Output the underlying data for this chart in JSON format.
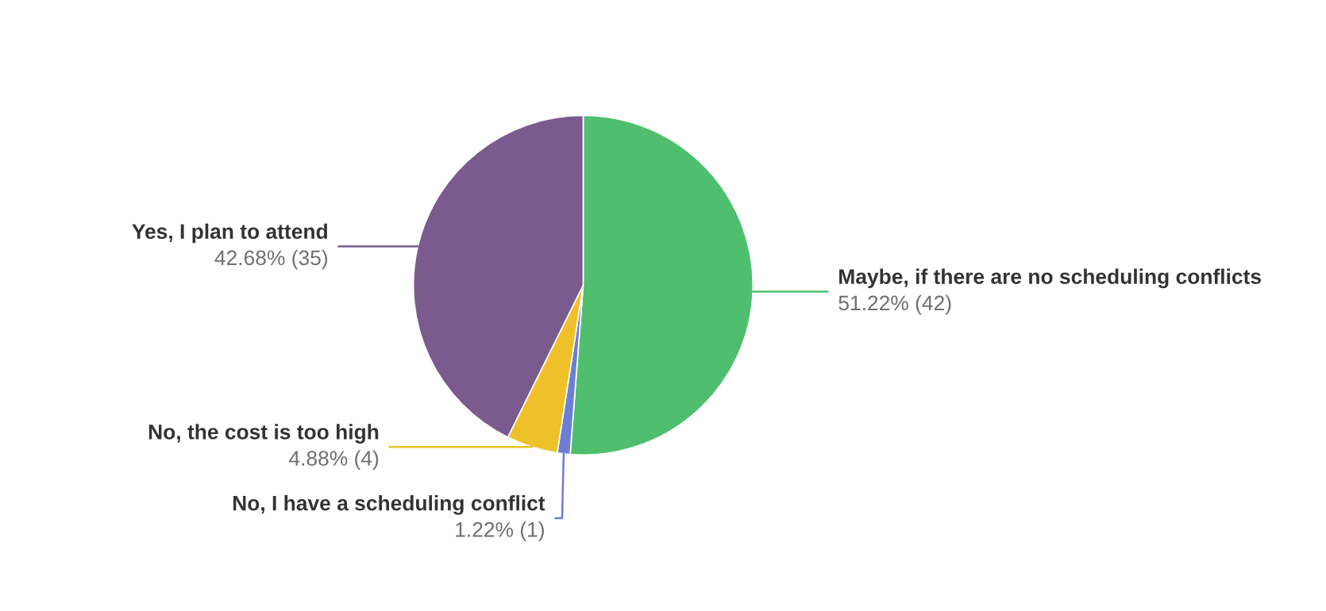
{
  "chart_data": {
    "type": "pie",
    "categories": [
      "Maybe, if there are no scheduling conflicts",
      "No, I have a scheduling conflict",
      "No, the cost is too high",
      "Yes, I plan to attend"
    ],
    "values": [
      51.22,
      1.22,
      4.88,
      42.68
    ],
    "value_labels": [
      "51.22% (42)",
      "1.22% (1)",
      "4.88% (4)",
      "42.68% (35)"
    ],
    "colors": [
      "#4fbf6f",
      "#6b7fd4",
      "#eec12b",
      "#7b5b8e"
    ]
  }
}
